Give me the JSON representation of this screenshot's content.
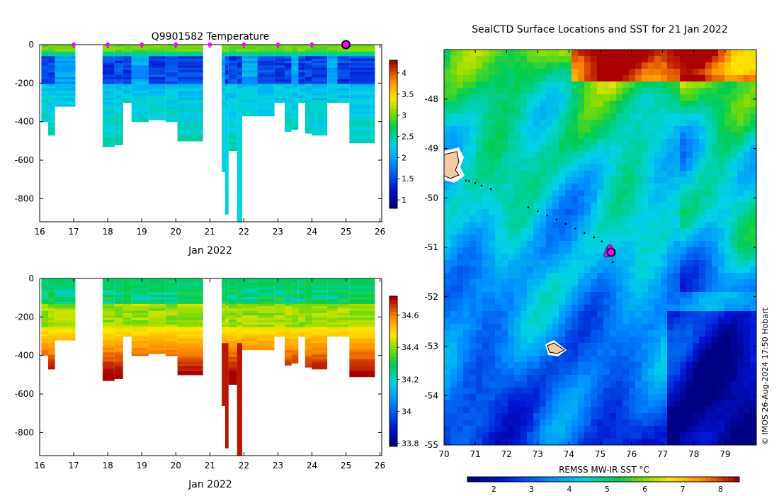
{
  "chart_data": [
    {
      "id": "temperature",
      "type": "heatmap",
      "title": "Q9901582  Temperature",
      "xlabel": "Jan 2022",
      "ylabel": "",
      "xlim": [
        16,
        26.05
      ],
      "ylim": [
        -920,
        0
      ],
      "xticks": [
        "16",
        "17",
        "18",
        "19",
        "20",
        "21",
        "22",
        "23",
        "24",
        "25",
        "26"
      ],
      "yticks": [
        "0",
        "-200",
        "-400",
        "-600",
        "-800"
      ],
      "ytick_values": [
        0,
        -200,
        -400,
        -600,
        -800
      ],
      "colorbar": {
        "min": 0.8,
        "max": 4.3,
        "ticks": [
          "1",
          "1.5",
          "2",
          "2.5",
          "3",
          "3.5",
          "4"
        ],
        "tick_values": [
          1,
          1.5,
          2,
          2.5,
          3,
          3.5,
          4
        ]
      },
      "profiles": [
        {
          "x0": 16.05,
          "x1": 16.25,
          "depth": 400
        },
        {
          "x0": 16.25,
          "x1": 16.45,
          "depth": 470
        },
        {
          "x0": 16.45,
          "x1": 17.05,
          "depth": 320
        },
        {
          "x0": 17.85,
          "x1": 18.2,
          "depth": 530
        },
        {
          "x0": 18.2,
          "x1": 18.45,
          "depth": 520
        },
        {
          "x0": 18.45,
          "x1": 18.7,
          "depth": 300
        },
        {
          "x0": 18.7,
          "x1": 19.2,
          "depth": 400
        },
        {
          "x0": 19.2,
          "x1": 19.7,
          "depth": 390
        },
        {
          "x0": 19.7,
          "x1": 20.05,
          "depth": 400
        },
        {
          "x0": 20.05,
          "x1": 20.8,
          "depth": 500
        },
        {
          "x0": 21.35,
          "x1": 21.45,
          "depth": 660
        },
        {
          "x0": 21.45,
          "x1": 21.55,
          "depth": 880
        },
        {
          "x0": 21.55,
          "x1": 21.8,
          "depth": 550
        },
        {
          "x0": 21.8,
          "x1": 21.95,
          "depth": 920
        },
        {
          "x0": 21.95,
          "x1": 22.4,
          "depth": 370
        },
        {
          "x0": 22.4,
          "x1": 22.9,
          "depth": 370
        },
        {
          "x0": 22.9,
          "x1": 23.2,
          "depth": 300
        },
        {
          "x0": 23.2,
          "x1": 23.4,
          "depth": 450
        },
        {
          "x0": 23.4,
          "x1": 23.6,
          "depth": 440
        },
        {
          "x0": 23.6,
          "x1": 23.8,
          "depth": 300
        },
        {
          "x0": 23.8,
          "x1": 24.0,
          "depth": 460
        },
        {
          "x0": 24.0,
          "x1": 24.45,
          "depth": 470
        },
        {
          "x0": 24.45,
          "x1": 24.75,
          "depth": 300
        },
        {
          "x0": 24.75,
          "x1": 25.1,
          "depth": 300
        },
        {
          "x0": 25.1,
          "x1": 25.85,
          "depth": 510
        }
      ],
      "markers": [
        17,
        18,
        19,
        20,
        21,
        22,
        23,
        24
      ],
      "current_marker": 25
    },
    {
      "id": "salinity",
      "type": "heatmap",
      "title": "",
      "xlabel": "Jan 2022",
      "ylabel": "",
      "xlim": [
        16,
        26.05
      ],
      "ylim": [
        -920,
        0
      ],
      "xticks": [
        "16",
        "17",
        "18",
        "19",
        "20",
        "21",
        "22",
        "23",
        "24",
        "25",
        "26"
      ],
      "yticks": [
        "0",
        "-200",
        "-400",
        "-600",
        "-800"
      ],
      "ytick_values": [
        0,
        -200,
        -400,
        -600,
        -800
      ],
      "colorbar": {
        "min": 33.78,
        "max": 34.72,
        "ticks": [
          "33.8",
          "34",
          "34.2",
          "34.4",
          "34.6"
        ],
        "tick_values": [
          33.8,
          34.0,
          34.2,
          34.4,
          34.6
        ]
      }
    },
    {
      "id": "sst_map",
      "type": "heatmap",
      "title": "SealCTD Surface Locations and SST for 21 Jan 2022",
      "xlim": [
        70,
        80
      ],
      "ylim": [
        -55,
        -47
      ],
      "xticks": [
        "70",
        "71",
        "72",
        "73",
        "74",
        "75",
        "76",
        "77",
        "78",
        "79"
      ],
      "xtick_values": [
        70,
        71,
        72,
        73,
        74,
        75,
        76,
        77,
        78,
        79
      ],
      "yticks": [
        "-48",
        "-49",
        "-50",
        "-51",
        "-52",
        "-53",
        "-54",
        "-55"
      ],
      "ytick_values": [
        -48,
        -49,
        -50,
        -51,
        -52,
        -53,
        -54,
        -55
      ],
      "colorbar": {
        "label": "REMSS MW-IR SST °C",
        "min": 1.3,
        "max": 8.5,
        "ticks": [
          "2",
          "3",
          "4",
          "5",
          "6",
          "7",
          "8"
        ],
        "tick_values": [
          2,
          3,
          4,
          5,
          6,
          7,
          8
        ]
      },
      "track": [
        [
          70.7,
          -49.65
        ],
        [
          70.8,
          -49.66
        ],
        [
          71.0,
          -49.7
        ],
        [
          71.2,
          -49.75
        ],
        [
          71.5,
          -49.82
        ],
        [
          72.7,
          -50.19
        ],
        [
          73.0,
          -50.27
        ],
        [
          73.3,
          -50.35
        ],
        [
          73.6,
          -50.44
        ],
        [
          73.9,
          -50.53
        ],
        [
          74.2,
          -50.62
        ],
        [
          74.5,
          -50.71
        ],
        [
          74.8,
          -50.8
        ],
        [
          75.05,
          -50.88
        ],
        [
          75.4,
          -51.3
        ]
      ],
      "cluster": [
        [
          75.25,
          -51.05
        ],
        [
          75.35,
          -51.12
        ],
        [
          75.2,
          -51.15
        ],
        [
          75.3,
          -51.0
        ],
        [
          75.4,
          -51.08
        ]
      ],
      "current_position": [
        75.35,
        -51.1
      ]
    }
  ],
  "copyright": "© IMOS 26-Aug-2024 17:50 Hobart"
}
